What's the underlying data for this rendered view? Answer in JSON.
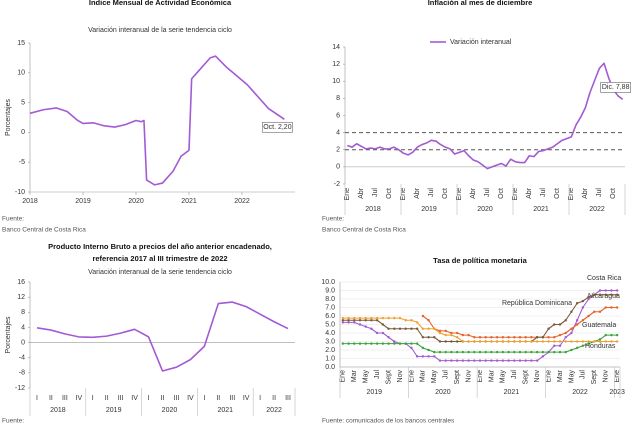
{
  "chart_data": [
    {
      "type": "line",
      "title": "Índice Mensual de  Actividad Económica",
      "subtitle": "Variación interanual de la serie tendencia ciclo",
      "y_label": "Porcentajes",
      "x": [
        2018.0,
        2018.25,
        2018.5,
        2018.7,
        2018.9,
        2019.0,
        2019.2,
        2019.4,
        2019.6,
        2019.8,
        2020.0,
        2020.1,
        2020.15,
        2020.2,
        2020.35,
        2020.5,
        2020.7,
        2020.85,
        2021.0,
        2021.05,
        2021.2,
        2021.4,
        2021.5,
        2021.7,
        2021.9,
        2022.1,
        2022.3,
        2022.5,
        2022.7,
        2022.8
      ],
      "values": [
        3.2,
        3.8,
        4.1,
        3.5,
        2.0,
        1.5,
        1.6,
        1.1,
        0.9,
        1.3,
        2.0,
        1.8,
        2.0,
        -8.0,
        -8.8,
        -8.5,
        -6.5,
        -4.0,
        -3.0,
        9.0,
        10.5,
        12.5,
        12.8,
        11.0,
        9.5,
        8.0,
        6.0,
        4.0,
        2.8,
        2.2
      ],
      "color": "#a35bd3",
      "xlim": [
        2018,
        2023
      ],
      "xticks": [
        2018,
        2019,
        2020,
        2021,
        2022
      ],
      "ylim": [
        -10,
        15
      ],
      "yticks": [
        -10,
        -5,
        0,
        5,
        10,
        15
      ],
      "annotation": "Oct. 2,20",
      "source": [
        "Fuente:",
        "Banco Central de Costa Rica"
      ]
    },
    {
      "type": "line",
      "title": "Inflación al mes de diciembre",
      "categories": [
        "Ene",
        null,
        null,
        "Abr",
        null,
        null,
        "Jul",
        null,
        null,
        "Oct",
        null,
        null,
        "Ene",
        null,
        null,
        "Abr",
        null,
        null,
        "Jul",
        null,
        null,
        "Oct",
        null,
        null,
        "Ene",
        null,
        null,
        "Abr",
        null,
        null,
        "Jul",
        null,
        null,
        "Oct",
        null,
        null,
        "Ene",
        null,
        null,
        "Abr",
        null,
        null,
        "Jul",
        null,
        null,
        "Oct",
        null,
        null,
        "Ene",
        null,
        null,
        "Abr",
        null,
        null,
        "Jul",
        null,
        null,
        "Oct",
        null,
        null
      ],
      "years": [
        "2018",
        "2019",
        "2020",
        "2021",
        "2022"
      ],
      "series": [
        {
          "name": "Variación interanual",
          "color": "#a35bd3",
          "values": [
            2.5,
            2.3,
            2.7,
            2.4,
            2.1,
            2.2,
            2.1,
            2.3,
            2.1,
            2.1,
            2.3,
            2.0,
            1.6,
            1.4,
            1.7,
            2.3,
            2.6,
            2.8,
            3.1,
            3.0,
            2.6,
            2.3,
            2.1,
            1.5,
            1.7,
            1.9,
            1.3,
            0.8,
            0.6,
            0.2,
            -0.2,
            0.0,
            0.2,
            0.4,
            0.1,
            0.9,
            0.6,
            0.5,
            0.5,
            1.3,
            1.2,
            1.8,
            1.9,
            2.1,
            2.3,
            2.7,
            3.1,
            3.3,
            3.5,
            4.9,
            5.8,
            6.9,
            8.7,
            10.1,
            11.5,
            12.1,
            10.4,
            9.0,
            8.3,
            7.88
          ]
        }
      ],
      "ylim": [
        -2,
        14
      ],
      "yticks": [
        -2,
        0,
        2,
        4,
        6,
        8,
        10,
        12,
        14
      ],
      "reference_lines": [
        4,
        2
      ],
      "annotation": "Dic. 7,88",
      "source": [
        "Fuente:",
        "Banco Central de Costa Rica"
      ]
    },
    {
      "type": "line",
      "title": [
        "Producto Interno Bruto a precios del año anterior encadenado,",
        "referencia 2017 al III trimestre de 2022"
      ],
      "subtitle": "Variación interanual de la serie tendencia ciclo",
      "y_label": "Porcentajes",
      "categories": [
        "I",
        "II",
        "III",
        "IV",
        "I",
        "II",
        "III",
        "IV",
        "I",
        "II",
        "III",
        "IV",
        "I",
        "II",
        "III",
        "IV",
        "I",
        "II",
        "III"
      ],
      "years": [
        "2018",
        "2019",
        "2020",
        "2021",
        "2022"
      ],
      "values": [
        3.9,
        3.3,
        2.3,
        1.5,
        1.4,
        1.7,
        2.5,
        3.5,
        1.5,
        -7.5,
        -6.5,
        -4.5,
        -1.0,
        10.3,
        10.7,
        9.5,
        7.5,
        5.5,
        3.7
      ],
      "color": "#a35bd3",
      "ylim": [
        -12,
        16
      ],
      "yticks": [
        16,
        12,
        8,
        4,
        0,
        -4,
        -8,
        -12
      ],
      "negative_tick_color": "#e53935",
      "source": [
        "Fuente:"
      ]
    },
    {
      "type": "line",
      "title": "Tasa de política monetaria",
      "categories": [
        "Ene",
        null,
        "Mar",
        null,
        "May",
        null,
        "Jul",
        null,
        "Sept",
        null,
        "Nov",
        null,
        "Ene",
        null,
        "Mar",
        null,
        "May",
        null,
        "Jul",
        null,
        "Sept",
        null,
        "Nov",
        null,
        "Ene",
        null,
        "Mar",
        null,
        "May",
        null,
        "Jul",
        null,
        "Sept",
        null,
        "Nov",
        null,
        "Ene",
        null,
        "Mar",
        null,
        "May",
        null,
        "Jul",
        null,
        "Sept",
        null,
        "Nov",
        null,
        "Ene"
      ],
      "years": [
        "2019",
        "2020",
        "2021",
        "2022",
        "2023"
      ],
      "series": [
        {
          "name": "Costa Rica",
          "color": "#a35bd3",
          "values": [
            5.25,
            5.25,
            5.25,
            5.0,
            4.75,
            4.5,
            4.0,
            4.0,
            3.5,
            3.0,
            2.75,
            2.75,
            2.25,
            1.25,
            1.25,
            1.25,
            1.25,
            0.75,
            0.75,
            0.75,
            0.75,
            0.75,
            0.75,
            0.75,
            0.75,
            0.75,
            0.75,
            0.75,
            0.75,
            0.75,
            0.75,
            0.75,
            0.75,
            0.75,
            0.75,
            1.25,
            1.75,
            2.5,
            2.5,
            3.5,
            4.0,
            5.5,
            7.0,
            8.0,
            8.5,
            9.0,
            9.0,
            9.0,
            9.0
          ]
        },
        {
          "name": "Nicaragua",
          "color": "#e8602c",
          "values": [
            null,
            null,
            null,
            null,
            null,
            null,
            null,
            null,
            null,
            null,
            null,
            null,
            null,
            null,
            6.0,
            5.5,
            4.5,
            4.25,
            4.25,
            4.0,
            4.0,
            3.75,
            3.75,
            3.5,
            3.5,
            3.5,
            3.5,
            3.5,
            3.5,
            3.5,
            3.5,
            3.5,
            3.5,
            3.5,
            3.5,
            3.5,
            3.5,
            3.5,
            3.75,
            4.0,
            4.5,
            5.0,
            5.5,
            6.0,
            6.5,
            6.5,
            7.0,
            7.0,
            7.0
          ]
        },
        {
          "name": "República Dominicana",
          "color": "#7b5a3a",
          "values": [
            5.5,
            5.5,
            5.5,
            5.5,
            5.5,
            5.5,
            5.5,
            5.0,
            4.5,
            4.5,
            4.5,
            4.5,
            4.5,
            4.5,
            3.5,
            3.5,
            3.5,
            3.0,
            3.0,
            3.0,
            3.0,
            3.0,
            3.0,
            3.0,
            3.0,
            3.0,
            3.0,
            3.0,
            3.0,
            3.0,
            3.0,
            3.0,
            3.0,
            3.0,
            3.5,
            3.5,
            4.5,
            5.0,
            5.0,
            5.5,
            6.5,
            7.5,
            7.75,
            8.25,
            8.5,
            8.5,
            8.5,
            8.5,
            8.5
          ]
        },
        {
          "name": "Guatemala",
          "color": "#3aa33a",
          "values": [
            2.75,
            2.75,
            2.75,
            2.75,
            2.75,
            2.75,
            2.75,
            2.75,
            2.75,
            2.75,
            2.75,
            2.75,
            2.75,
            2.75,
            2.25,
            2.0,
            1.75,
            1.75,
            1.75,
            1.75,
            1.75,
            1.75,
            1.75,
            1.75,
            1.75,
            1.75,
            1.75,
            1.75,
            1.75,
            1.75,
            1.75,
            1.75,
            1.75,
            1.75,
            1.75,
            1.75,
            1.75,
            1.75,
            1.75,
            1.75,
            2.0,
            2.25,
            2.5,
            2.75,
            3.0,
            3.25,
            3.75,
            3.75,
            3.75
          ]
        },
        {
          "name": "Honduras",
          "color": "#f0a030",
          "values": [
            5.75,
            5.75,
            5.75,
            5.75,
            5.75,
            5.75,
            5.75,
            5.75,
            5.75,
            5.75,
            5.75,
            5.5,
            5.5,
            5.25,
            4.5,
            4.5,
            4.5,
            4.0,
            3.75,
            3.75,
            3.5,
            3.0,
            3.0,
            3.0,
            3.0,
            3.0,
            3.0,
            3.0,
            3.0,
            3.0,
            3.0,
            3.0,
            3.0,
            3.0,
            3.0,
            3.0,
            3.0,
            3.0,
            3.0,
            3.0,
            3.0,
            3.0,
            3.0,
            3.0,
            3.0,
            3.0,
            3.0,
            3.0,
            3.0
          ]
        }
      ],
      "ylim": [
        0,
        10
      ],
      "yticks": [
        {
          "value": 0,
          "label": "0.0"
        },
        {
          "value": 1,
          "label": "1.0"
        },
        {
          "value": 2,
          "label": "2.0"
        },
        {
          "value": 3,
          "label": "3.0"
        },
        {
          "value": 4,
          "label": "4.0"
        },
        {
          "value": 5,
          "label": "5.0"
        },
        {
          "value": 6,
          "label": "6.0"
        },
        {
          "value": 7,
          "label": "7.0"
        },
        {
          "value": 8,
          "label": "8.0"
        },
        {
          "value": 9,
          "label": "9.0"
        },
        {
          "value": 10,
          "label": "10.0"
        }
      ],
      "grid": true,
      "source": [
        "Fuente: comunicados de los bancos centrales"
      ]
    }
  ]
}
